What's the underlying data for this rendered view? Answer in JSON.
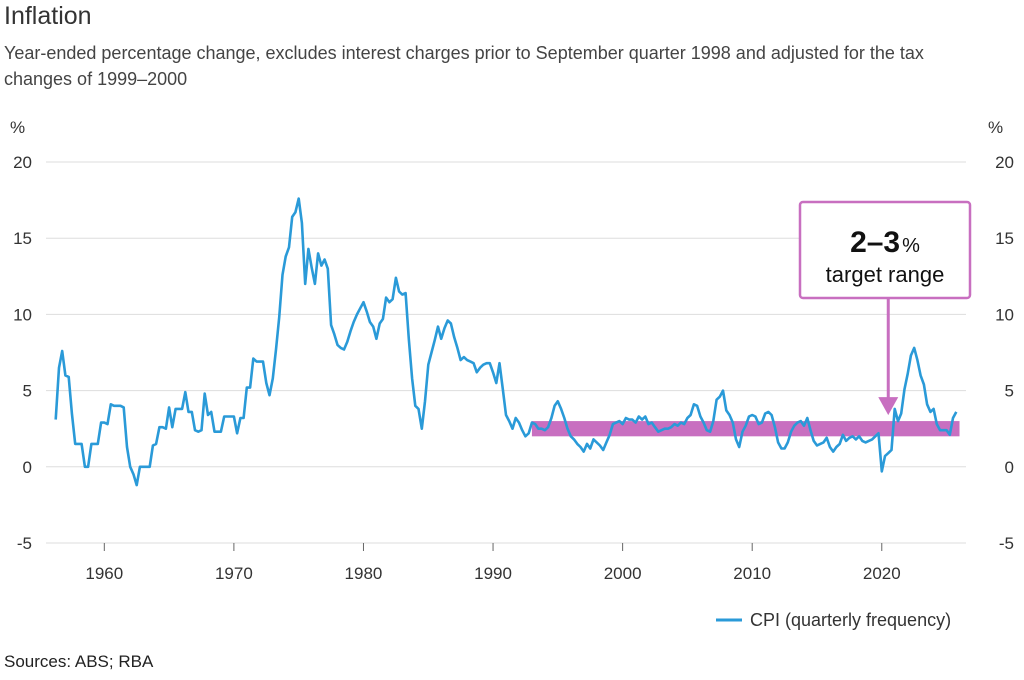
{
  "title": "Inflation",
  "subtitle": "Year-ended percentage change, excludes interest charges prior to September quarter 1998 and adjusted for the tax changes of 1999–2000",
  "source": "Sources: ABS; RBA",
  "colors": {
    "line": "#2a9ad8",
    "band": "#c86fc0",
    "grid": "#dddddd"
  },
  "chart_data": {
    "type": "line",
    "yunit_left": "%",
    "yunit_right": "%",
    "ylim": [
      -5,
      20
    ],
    "yticks": [
      "-5",
      "0",
      "5",
      "10",
      "15",
      "20"
    ],
    "xlim": [
      1955.5,
      2026.5
    ],
    "xticks": [
      "1960",
      "1970",
      "1980",
      "1990",
      "2000",
      "2010",
      "2020"
    ],
    "grid": true,
    "legend_position": "bottom-right",
    "target_band": {
      "low": 2,
      "high": 3,
      "from": 1993.0,
      "to": 2026.0
    },
    "callout": {
      "value": "2–3",
      "unit": "%",
      "label": "target range",
      "pointer_x": 2020.5
    },
    "series": [
      {
        "name": "CPI (quarterly frequency)",
        "x": [
          1956.25,
          1956.5,
          1956.75,
          1957.0,
          1957.25,
          1957.5,
          1957.75,
          1958.0,
          1958.25,
          1958.5,
          1958.75,
          1959.0,
          1959.25,
          1959.5,
          1959.75,
          1960.0,
          1960.25,
          1960.5,
          1960.75,
          1961.0,
          1961.25,
          1961.5,
          1961.75,
          1962.0,
          1962.25,
          1962.5,
          1962.75,
          1963.0,
          1963.25,
          1963.5,
          1963.75,
          1964.0,
          1964.25,
          1964.5,
          1964.75,
          1965.0,
          1965.25,
          1965.5,
          1965.75,
          1966.0,
          1966.25,
          1966.5,
          1966.75,
          1967.0,
          1967.25,
          1967.5,
          1967.75,
          1968.0,
          1968.25,
          1968.5,
          1968.75,
          1969.0,
          1969.25,
          1969.5,
          1969.75,
          1970.0,
          1970.25,
          1970.5,
          1970.75,
          1971.0,
          1971.25,
          1971.5,
          1971.75,
          1972.0,
          1972.25,
          1972.5,
          1972.75,
          1973.0,
          1973.25,
          1973.5,
          1973.75,
          1974.0,
          1974.25,
          1974.5,
          1974.75,
          1975.0,
          1975.25,
          1975.5,
          1975.75,
          1976.0,
          1976.25,
          1976.5,
          1976.75,
          1977.0,
          1977.25,
          1977.5,
          1977.75,
          1978.0,
          1978.25,
          1978.5,
          1978.75,
          1979.0,
          1979.25,
          1979.5,
          1979.75,
          1980.0,
          1980.25,
          1980.5,
          1980.75,
          1981.0,
          1981.25,
          1981.5,
          1981.75,
          1982.0,
          1982.25,
          1982.5,
          1982.75,
          1983.0,
          1983.25,
          1983.5,
          1983.75,
          1984.0,
          1984.25,
          1984.5,
          1984.75,
          1985.0,
          1985.25,
          1985.5,
          1985.75,
          1986.0,
          1986.25,
          1986.5,
          1986.75,
          1987.0,
          1987.25,
          1987.5,
          1987.75,
          1988.0,
          1988.25,
          1988.5,
          1988.75,
          1989.0,
          1989.25,
          1989.5,
          1989.75,
          1990.0,
          1990.25,
          1990.5,
          1990.75,
          1991.0,
          1991.25,
          1991.5,
          1991.75,
          1992.0,
          1992.25,
          1992.5,
          1992.75,
          1993.0,
          1993.25,
          1993.5,
          1993.75,
          1994.0,
          1994.25,
          1994.5,
          1994.75,
          1995.0,
          1995.25,
          1995.5,
          1995.75,
          1996.0,
          1996.25,
          1996.5,
          1996.75,
          1997.0,
          1997.25,
          1997.5,
          1997.75,
          1998.0,
          1998.25,
          1998.5,
          1998.75,
          1999.0,
          1999.25,
          1999.5,
          1999.75,
          2000.0,
          2000.25,
          2000.5,
          2000.75,
          2001.0,
          2001.25,
          2001.5,
          2001.75,
          2002.0,
          2002.25,
          2002.5,
          2002.75,
          2003.0,
          2003.25,
          2003.5,
          2003.75,
          2004.0,
          2004.25,
          2004.5,
          2004.75,
          2005.0,
          2005.25,
          2005.5,
          2005.75,
          2006.0,
          2006.25,
          2006.5,
          2006.75,
          2007.0,
          2007.25,
          2007.5,
          2007.75,
          2008.0,
          2008.25,
          2008.5,
          2008.75,
          2009.0,
          2009.25,
          2009.5,
          2009.75,
          2010.0,
          2010.25,
          2010.5,
          2010.75,
          2011.0,
          2011.25,
          2011.5,
          2011.75,
          2012.0,
          2012.25,
          2012.5,
          2012.75,
          2013.0,
          2013.25,
          2013.5,
          2013.75,
          2014.0,
          2014.25,
          2014.5,
          2014.75,
          2015.0,
          2015.25,
          2015.5,
          2015.75,
          2016.0,
          2016.25,
          2016.5,
          2016.75,
          2017.0,
          2017.25,
          2017.5,
          2017.75,
          2018.0,
          2018.25,
          2018.5,
          2018.75,
          2019.0,
          2019.25,
          2019.5,
          2019.75,
          2020.0,
          2020.25,
          2020.5,
          2020.75,
          2021.0,
          2021.25,
          2021.5,
          2021.75,
          2022.0,
          2022.25,
          2022.5,
          2022.75,
          2023.0,
          2023.25,
          2023.5,
          2023.75,
          2024.0,
          2024.25,
          2024.5,
          2024.75,
          2025.0,
          2025.25,
          2025.5,
          2025.75
        ],
        "y": [
          3.1,
          6.5,
          7.6,
          6.0,
          5.9,
          3.5,
          1.5,
          1.5,
          1.5,
          0.0,
          0.0,
          1.5,
          1.5,
          1.5,
          2.9,
          2.9,
          2.8,
          4.1,
          4.0,
          4.0,
          4.0,
          3.9,
          1.3,
          0.0,
          -0.5,
          -1.2,
          0.0,
          0.0,
          0.0,
          0.0,
          1.4,
          1.5,
          2.6,
          2.6,
          2.5,
          3.9,
          2.6,
          3.8,
          3.8,
          3.8,
          4.9,
          3.6,
          3.6,
          2.4,
          2.3,
          2.4,
          4.8,
          3.4,
          3.6,
          2.3,
          2.3,
          2.3,
          3.3,
          3.3,
          3.3,
          3.3,
          2.2,
          3.2,
          3.2,
          5.2,
          5.2,
          7.1,
          6.9,
          6.9,
          6.9,
          5.5,
          4.7,
          5.8,
          7.7,
          9.8,
          12.6,
          13.8,
          14.4,
          16.4,
          16.7,
          17.6,
          16.0,
          12.0,
          14.3,
          13.1,
          12.0,
          14.0,
          13.2,
          13.6,
          13.0,
          9.3,
          8.7,
          8.0,
          7.8,
          7.7,
          8.2,
          8.9,
          9.5,
          10.0,
          10.4,
          10.8,
          10.2,
          9.5,
          9.2,
          8.4,
          9.4,
          9.7,
          11.1,
          10.8,
          11.0,
          12.4,
          11.5,
          11.3,
          11.4,
          8.4,
          5.8,
          4.0,
          3.8,
          2.5,
          4.3,
          6.7,
          7.5,
          8.3,
          9.2,
          8.4,
          9.1,
          9.6,
          9.4,
          8.5,
          7.8,
          7.0,
          7.2,
          7.0,
          6.9,
          6.8,
          6.2,
          6.5,
          6.7,
          6.8,
          6.8,
          6.2,
          5.5,
          6.8,
          5.1,
          3.4,
          3.0,
          2.5,
          3.2,
          2.9,
          2.4,
          2.0,
          2.2,
          2.9,
          2.8,
          2.5,
          2.5,
          2.4,
          2.6,
          3.2,
          4.0,
          4.3,
          3.8,
          3.2,
          2.5,
          2.0,
          1.8,
          1.5,
          1.3,
          1.0,
          1.5,
          1.2,
          1.8,
          1.6,
          1.4,
          1.1,
          1.6,
          2.1,
          2.8,
          2.9,
          3.0,
          2.8,
          3.2,
          3.1,
          3.1,
          2.9,
          3.3,
          3.1,
          3.3,
          2.8,
          2.9,
          2.6,
          2.3,
          2.4,
          2.5,
          2.5,
          2.6,
          2.8,
          2.7,
          2.9,
          2.8,
          3.2,
          3.4,
          4.1,
          4.0,
          3.3,
          2.9,
          2.4,
          2.3,
          3.0,
          4.4,
          4.6,
          5.0,
          3.7,
          3.4,
          2.9,
          1.8,
          1.3,
          2.3,
          2.7,
          3.3,
          3.4,
          3.3,
          2.8,
          2.9,
          3.5,
          3.6,
          3.4,
          2.6,
          1.6,
          1.2,
          1.2,
          1.6,
          2.3,
          2.7,
          2.9,
          3.0,
          2.7,
          3.2,
          2.4,
          1.7,
          1.4,
          1.5,
          1.6,
          1.9,
          1.3,
          1.0,
          1.3,
          1.5,
          2.1,
          1.7,
          1.9,
          2.0,
          1.8,
          2.0,
          1.7,
          1.6,
          1.7,
          1.8,
          2.0,
          2.2,
          -0.3,
          0.7,
          0.9,
          1.1,
          3.8,
          3.0,
          3.5,
          5.1,
          6.1,
          7.3,
          7.8,
          7.0,
          6.0,
          5.4,
          4.1,
          3.6,
          3.8,
          2.8,
          2.4,
          2.4,
          2.4,
          2.1,
          3.2,
          3.6
        ]
      }
    ]
  }
}
